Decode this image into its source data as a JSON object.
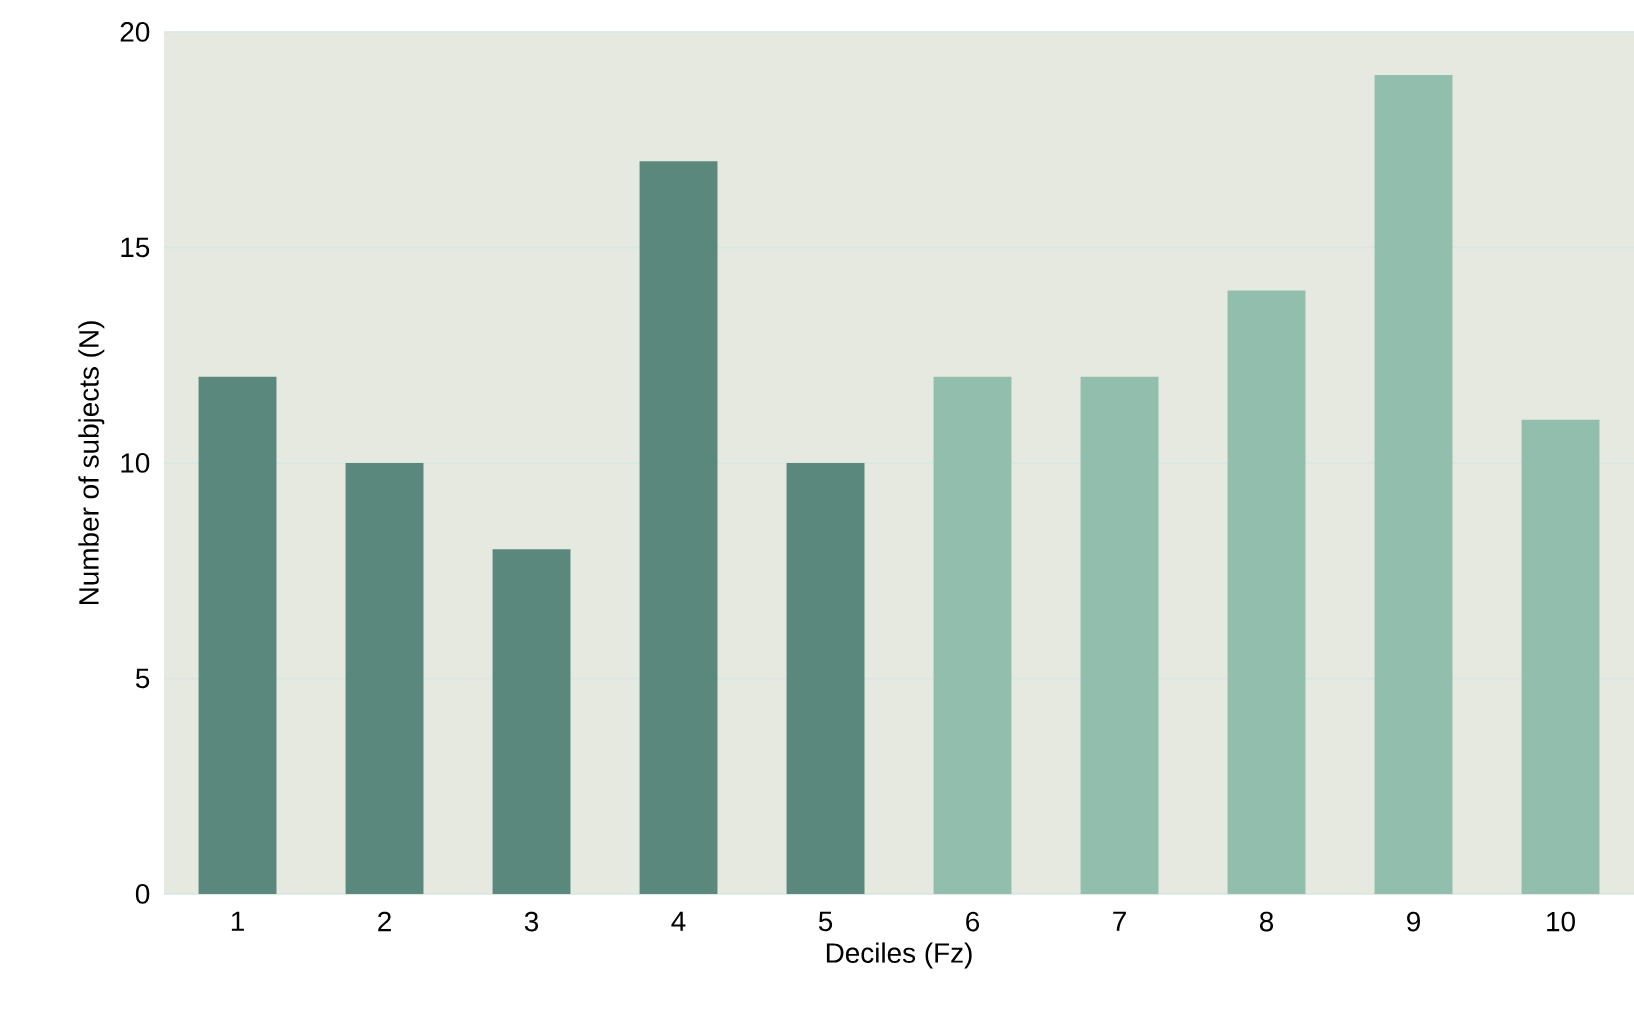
{
  "chart_data": {
    "type": "bar",
    "xlabel": "Deciles (Fz)",
    "ylabel": "Number of subjects (N)",
    "categories": [
      "1",
      "2",
      "3",
      "4",
      "5",
      "6",
      "7",
      "8",
      "9",
      "10"
    ],
    "values": [
      12,
      10,
      8,
      17,
      10,
      12,
      12,
      14,
      19,
      11
    ],
    "colors": [
      "#5b887d",
      "#5b887d",
      "#5b887d",
      "#5b887d",
      "#5b887d",
      "#92bfad",
      "#92bfad",
      "#92bfad",
      "#92bfad",
      "#92bfad"
    ],
    "ylim": [
      0,
      20
    ],
    "yticks": [
      0,
      5,
      10,
      15,
      20
    ],
    "grid": "y"
  }
}
